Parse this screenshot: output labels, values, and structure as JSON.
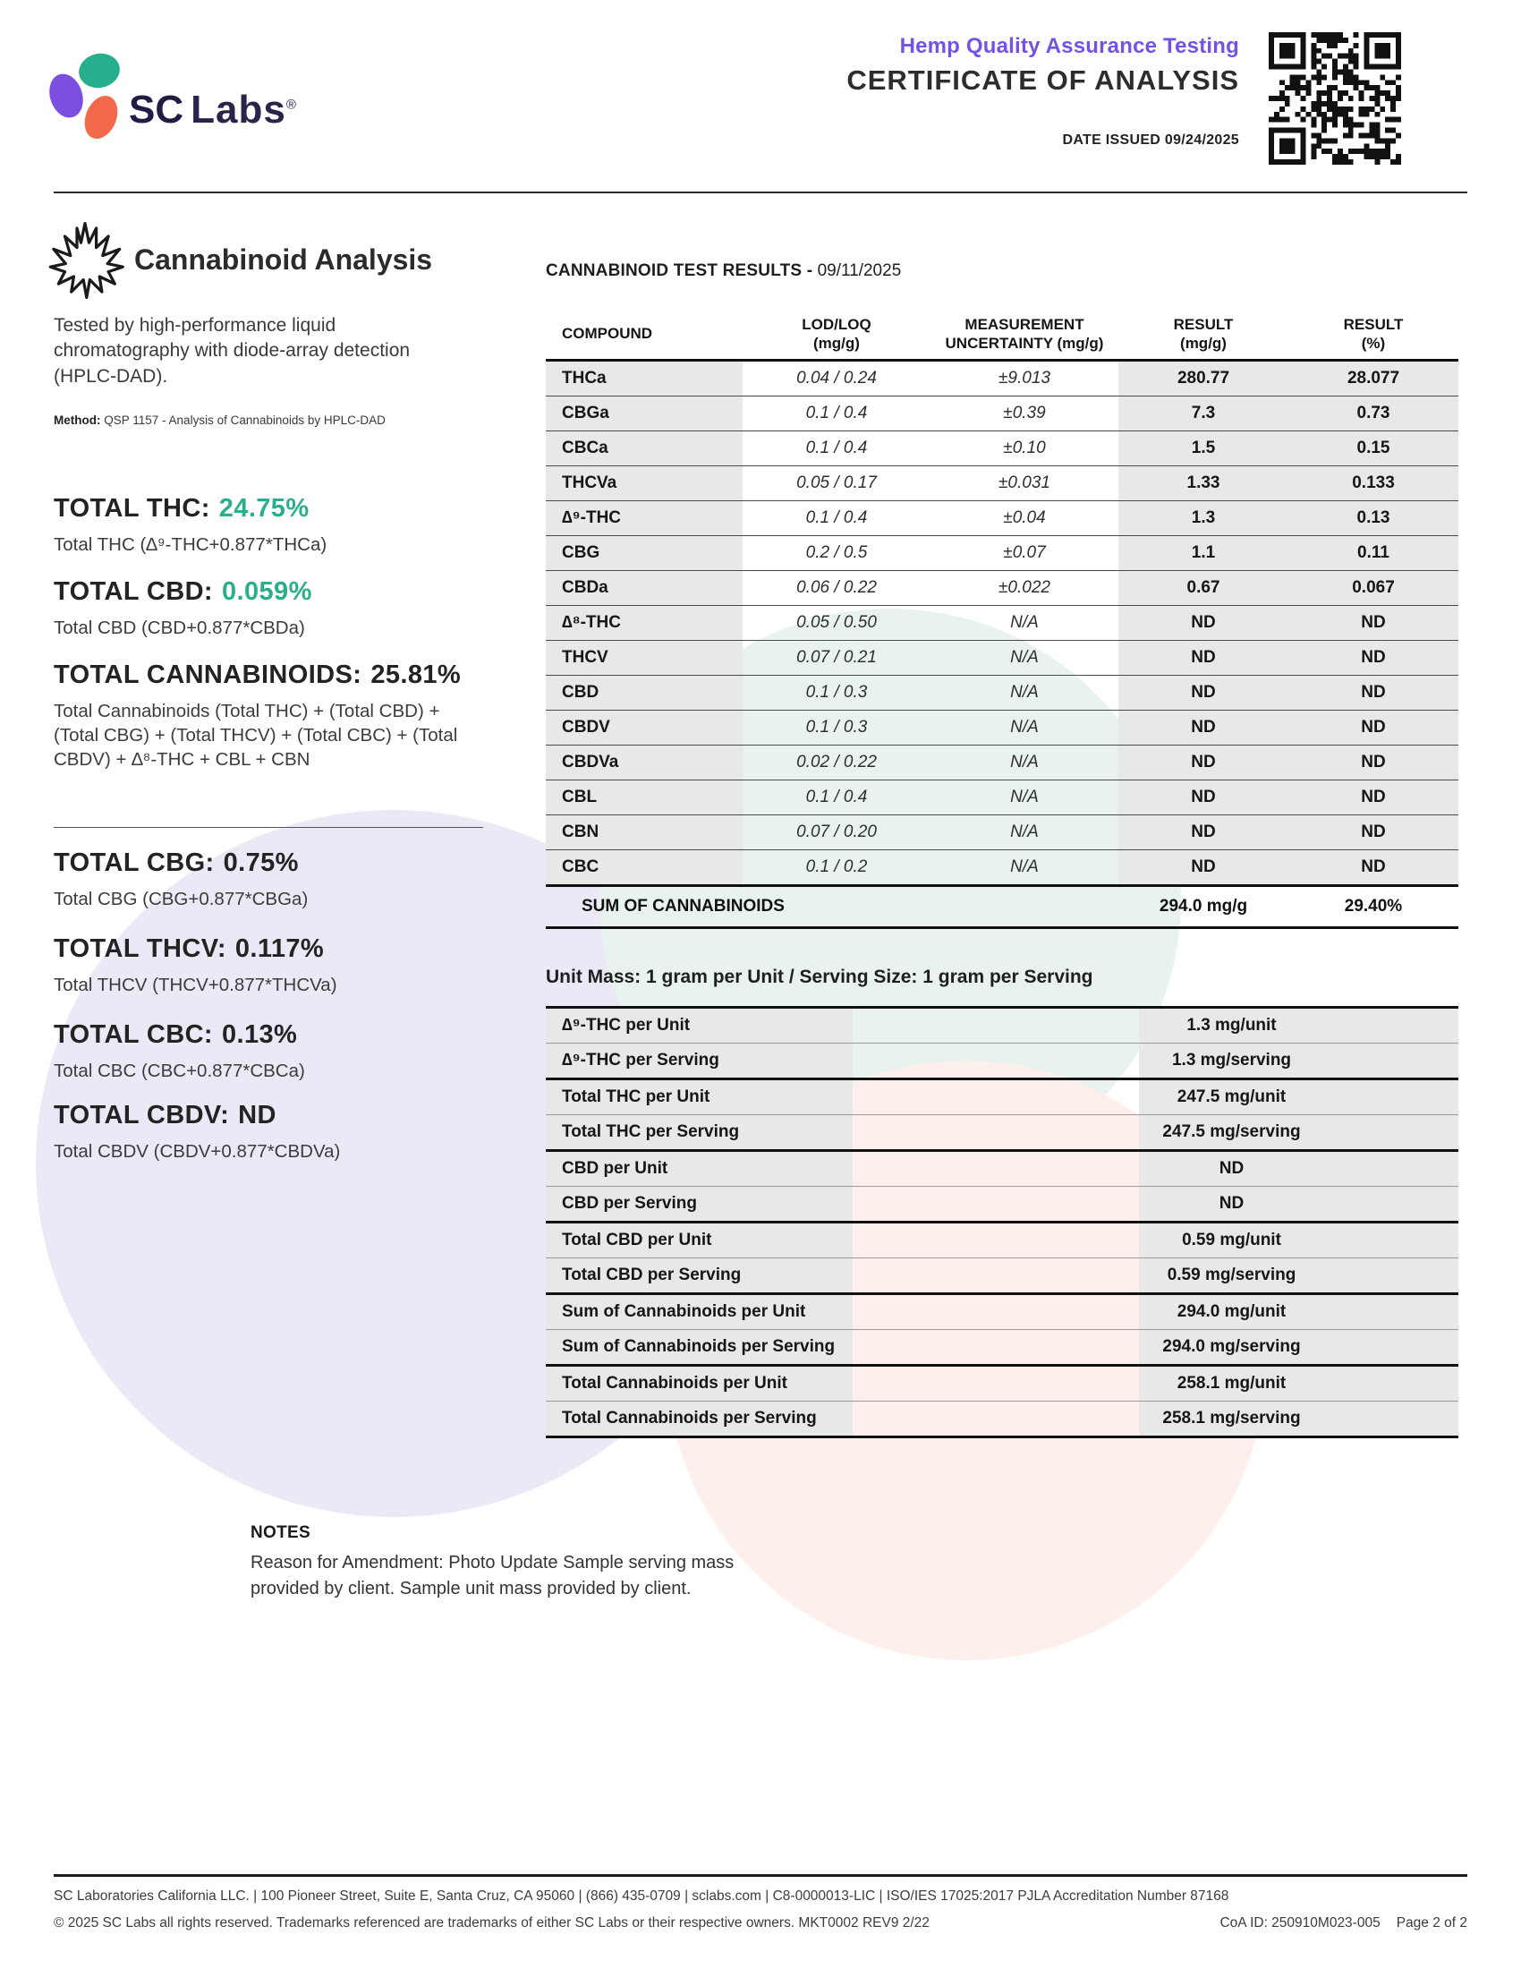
{
  "header": {
    "brand_sc": "SC",
    "brand_labs": "Labs",
    "brand_reg": "®",
    "program": "Hemp Quality Assurance Testing",
    "title": "CERTIFICATE OF ANALYSIS",
    "date_issued": "DATE ISSUED 09/24/2025"
  },
  "colors": {
    "accent_teal": "#2BAE8C",
    "accent_purple": "#7452E4",
    "logo_purple": "#7C4FE0",
    "logo_green": "#27AE8C",
    "logo_orange": "#F26A4B"
  },
  "analysis": {
    "title": "Cannabinoid Analysis",
    "icon": "cannabis-leaf-icon",
    "description": "Tested by high-performance liquid chromatography with diode-array detection (HPLC-DAD).",
    "method_label": "Method:",
    "method_text": "QSP 1157 - Analysis of Cannabinoids by HPLC-DAD",
    "totals": [
      {
        "label": "TOTAL THC:",
        "value": "24.75%",
        "formula": "Total THC (∆⁹-THC+0.877*THCa)"
      },
      {
        "label": "TOTAL CBD:",
        "value": "0.059%",
        "formula": "Total CBD (CBD+0.877*CBDa)"
      },
      {
        "label": "TOTAL CANNABINOIDS:",
        "value": "25.81%",
        "formula": "Total Cannabinoids (Total THC) + (Total CBD) + (Total CBG) + (Total THCV) + (Total CBC) + (Total CBDV) + ∆⁸-THC + CBL + CBN"
      },
      {
        "label": "TOTAL CBG:",
        "value": "0.75%",
        "formula": "Total CBG (CBG+0.877*CBGa)"
      },
      {
        "label": "TOTAL THCV:",
        "value": "0.117%",
        "formula": "Total THCV (THCV+0.877*THCVa)"
      },
      {
        "label": "TOTAL CBC:",
        "value": "0.13%",
        "formula": "Total CBC (CBC+0.877*CBCa)"
      },
      {
        "label": "TOTAL CBDV:",
        "value": "ND",
        "formula": "Total CBDV (CBDV+0.877*CBDVa)"
      }
    ]
  },
  "results": {
    "heading": "CANNABINOID TEST RESULTS -",
    "heading_date": "09/11/2025",
    "columns": {
      "compound": "COMPOUND",
      "lod_1": "LOD/LOQ",
      "lod_2": "(mg/g)",
      "mu_1": "MEASUREMENT",
      "mu_2": "UNCERTAINTY (mg/g)",
      "rmg_1": "RESULT",
      "rmg_2": "(mg/g)",
      "rpct_1": "RESULT",
      "rpct_2": "(%)"
    },
    "rows": [
      {
        "compound": "THCa",
        "lod": "0.04 / 0.24",
        "mu": "±9.013",
        "mg": "280.77",
        "pct": "28.077"
      },
      {
        "compound": "CBGa",
        "lod": "0.1 / 0.4",
        "mu": "±0.39",
        "mg": "7.3",
        "pct": "0.73"
      },
      {
        "compound": "CBCa",
        "lod": "0.1 / 0.4",
        "mu": "±0.10",
        "mg": "1.5",
        "pct": "0.15"
      },
      {
        "compound": "THCVa",
        "lod": "0.05 / 0.17",
        "mu": "±0.031",
        "mg": "1.33",
        "pct": "0.133"
      },
      {
        "compound": "∆⁹-THC",
        "lod": "0.1 / 0.4",
        "mu": "±0.04",
        "mg": "1.3",
        "pct": "0.13"
      },
      {
        "compound": "CBG",
        "lod": "0.2 / 0.5",
        "mu": "±0.07",
        "mg": "1.1",
        "pct": "0.11"
      },
      {
        "compound": "CBDa",
        "lod": "0.06 / 0.22",
        "mu": "±0.022",
        "mg": "0.67",
        "pct": "0.067"
      },
      {
        "compound": "∆⁸-THC",
        "lod": "0.05 / 0.50",
        "mu": "N/A",
        "mg": "ND",
        "pct": "ND"
      },
      {
        "compound": "THCV",
        "lod": "0.07 / 0.21",
        "mu": "N/A",
        "mg": "ND",
        "pct": "ND"
      },
      {
        "compound": "CBD",
        "lod": "0.1 / 0.3",
        "mu": "N/A",
        "mg": "ND",
        "pct": "ND"
      },
      {
        "compound": "CBDV",
        "lod": "0.1 / 0.3",
        "mu": "N/A",
        "mg": "ND",
        "pct": "ND"
      },
      {
        "compound": "CBDVa",
        "lod": "0.02 / 0.22",
        "mu": "N/A",
        "mg": "ND",
        "pct": "ND"
      },
      {
        "compound": "CBL",
        "lod": "0.1 / 0.4",
        "mu": "N/A",
        "mg": "ND",
        "pct": "ND"
      },
      {
        "compound": "CBN",
        "lod": "0.07 / 0.20",
        "mu": "N/A",
        "mg": "ND",
        "pct": "ND"
      },
      {
        "compound": "CBC",
        "lod": "0.1 / 0.2",
        "mu": "N/A",
        "mg": "ND",
        "pct": "ND"
      }
    ],
    "sum": {
      "label": "SUM OF CANNABINOIDS",
      "mg": "294.0 mg/g",
      "pct": "29.40%"
    }
  },
  "unit_mass": {
    "heading": "Unit Mass: 1 gram per Unit / Serving Size: 1 gram per Serving",
    "rows": [
      {
        "label": "∆⁹-THC per Unit",
        "value": "1.3 mg/unit"
      },
      {
        "label": "∆⁹-THC per Serving",
        "value": "1.3 mg/serving"
      },
      {
        "label": "Total THC per Unit",
        "value": "247.5 mg/unit"
      },
      {
        "label": "Total THC per Serving",
        "value": "247.5 mg/serving"
      },
      {
        "label": "CBD per Unit",
        "value": "ND"
      },
      {
        "label": "CBD per Serving",
        "value": "ND"
      },
      {
        "label": "Total CBD per Unit",
        "value": "0.59 mg/unit"
      },
      {
        "label": "Total CBD per Serving",
        "value": "0.59 mg/serving"
      },
      {
        "label": "Sum of Cannabinoids per Unit",
        "value": "294.0 mg/unit"
      },
      {
        "label": "Sum of Cannabinoids per Serving",
        "value": "294.0 mg/serving"
      },
      {
        "label": "Total Cannabinoids per Unit",
        "value": "258.1 mg/unit"
      },
      {
        "label": "Total Cannabinoids per Serving",
        "value": "258.1 mg/serving"
      }
    ]
  },
  "notes": {
    "heading": "NOTES",
    "text": "Reason for Amendment: Photo Update Sample serving mass provided by client. Sample unit mass provided by client."
  },
  "footer": {
    "line1": "SC Laboratories California LLC. | 100 Pioneer Street, Suite E, Santa Cruz, CA 95060 | (866) 435-0709 | sclabs.com | C8-0000013-LIC | ISO/IES 17025:2017 PJLA Accreditation Number 87168",
    "line2": "© 2025 SC Labs all rights reserved. Trademarks referenced are trademarks of either SC Labs or their respective owners. MKT0002 REV9 2/22",
    "coa_id": "CoA ID: 250910M023-005",
    "page": "Page 2 of 2"
  }
}
